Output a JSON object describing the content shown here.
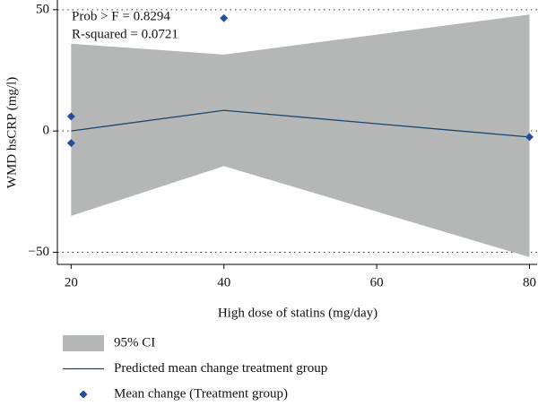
{
  "chart_data": {
    "type": "line",
    "annotations": [
      "Prob > F = 0.8294",
      "R-squared = 0.0721"
    ],
    "x_label": "High dose of statins (mg/day)",
    "y_label": "WMD hsCRP (mg/l)",
    "xlim": [
      18.2,
      81
    ],
    "ylim": [
      -55,
      54
    ],
    "xticks": [
      20,
      40,
      60,
      80
    ],
    "yticks": [
      {
        "value": -50,
        "label": "−50"
      },
      0,
      50
    ],
    "grid": true,
    "series": [
      {
        "name": "95% CI",
        "type": "area",
        "color": "#b5b7b7",
        "x": [
          20,
          40,
          80
        ],
        "upper": [
          36,
          31.5,
          48
        ],
        "lower": [
          -35,
          -14.5,
          -52
        ]
      },
      {
        "name": "Predicted mean change treatment group",
        "type": "line",
        "color": "#1a476f",
        "x": [
          20,
          40,
          80
        ],
        "values": [
          0,
          8.5,
          -2.5
        ]
      },
      {
        "name": "Mean change (Treatment group)",
        "type": "scatter",
        "color": "#1f4e9c",
        "x": [
          20,
          20,
          40,
          80
        ],
        "values": [
          6,
          -5,
          46.5,
          -2.5
        ]
      }
    ]
  }
}
